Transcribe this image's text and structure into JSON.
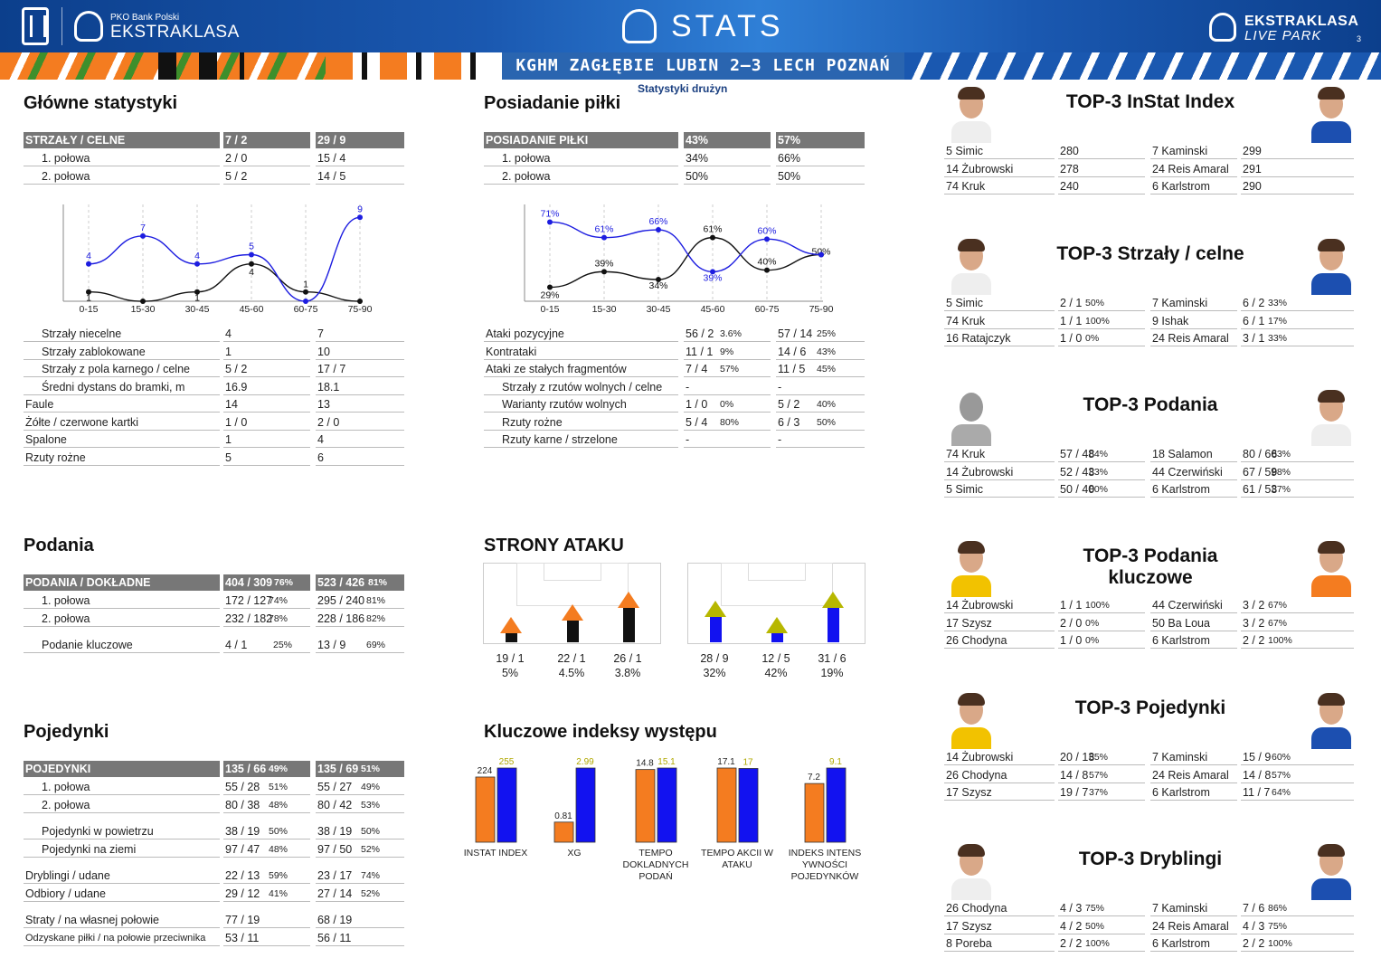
{
  "header": {
    "pko_small": "PKO Bank Polski",
    "pko_big": "EKSTRAKLASA",
    "title": "STATS",
    "live1": "EKSTRAKLASA",
    "live2": "LIVE PARK",
    "page": "3"
  },
  "banner_title": "KGHM ZAGŁĘBIE LUBIN 2–3 LECH POZNAŃ",
  "subtitle": "Statystyki drużyn",
  "colors": {
    "home": "#111111",
    "away": "#1d1de0",
    "orange": "#f47c20",
    "blue": "#1212f0",
    "olive": "#b7b700",
    "header_blue": "#1a58b0"
  },
  "main_stats": {
    "title": "Główne statystyki",
    "header": [
      "STRZAŁY / CELNE",
      "7 / 2",
      "29 / 9"
    ],
    "rows": [
      [
        "1. połowa",
        "2 / 0",
        "15 / 4"
      ],
      [
        "2. połowa",
        "5 / 2",
        "14 / 5"
      ]
    ],
    "rows2": [
      [
        "Strzały niecelne",
        "4",
        "7"
      ],
      [
        "Strzały zablokowane",
        "1",
        "10"
      ],
      [
        "Strzały z pola karnego / celne",
        "5 / 2",
        "17 / 7"
      ],
      [
        "Średni dystans do bramki, m",
        "16.9",
        "18.1"
      ],
      [
        "Faule",
        "14",
        "13"
      ],
      [
        "Żółte / czerwone kartki",
        "1 / 0",
        "2 / 0"
      ],
      [
        "Spalone",
        "1",
        "4"
      ],
      [
        "Rzuty rożne",
        "5",
        "6"
      ]
    ]
  },
  "possession": {
    "title": "Posiadanie piłki",
    "header": [
      "POSIADANIE PIŁKI",
      "43%",
      "57%"
    ],
    "rows": [
      [
        "1. połowa",
        "34%",
        "66%"
      ],
      [
        "2. połowa",
        "50%",
        "50%"
      ]
    ],
    "rows2": [
      [
        "Ataki pozycyjne",
        "56 / 2",
        "3.6%",
        "57 / 14",
        "25%"
      ],
      [
        "Kontrataki",
        "11 / 1",
        "9%",
        "14 / 6",
        "43%"
      ],
      [
        "Ataki ze stałych fragmentów",
        "7 / 4",
        "57%",
        "11 / 5",
        "45%"
      ],
      [
        "Strzały z rzutów wolnych / celne",
        "-",
        "",
        "-",
        ""
      ],
      [
        "Warianty rzutów wolnych",
        "1 / 0",
        "0%",
        "5 / 2",
        "40%"
      ],
      [
        "Rzuty rożne",
        "5 / 4",
        "80%",
        "6 / 3",
        "50%"
      ],
      [
        "Rzuty karne / strzelone",
        "-",
        "",
        "-",
        ""
      ]
    ]
  },
  "chart_data": [
    {
      "type": "line",
      "categories": [
        "0-15",
        "15-30",
        "30-45",
        "45-60",
        "60-75",
        "75-90"
      ],
      "series": [
        {
          "values": [
            1,
            0,
            1,
            4,
            1,
            0
          ],
          "labels": [
            "1",
            "",
            "1",
            "4",
            "1",
            ""
          ]
        },
        {
          "values": [
            4,
            7,
            4,
            5,
            0,
            9
          ],
          "labels": [
            "4",
            "7",
            "4",
            "5",
            "",
            "9"
          ]
        }
      ],
      "ylim": [
        0,
        10
      ]
    },
    {
      "type": "line",
      "categories": [
        "0-15",
        "15-30",
        "30-45",
        "45-60",
        "60-75",
        "75-90"
      ],
      "series": [
        {
          "values": [
            29,
            39,
            34,
            61,
            40,
            50
          ],
          "labels": [
            "29%",
            "39%",
            "34%",
            "61%",
            "40%",
            "50%"
          ]
        },
        {
          "values": [
            71,
            61,
            66,
            39,
            60,
            50
          ],
          "labels": [
            "71%",
            "61%",
            "66%",
            "39%",
            "60%",
            ""
          ]
        }
      ],
      "ylim": [
        20,
        80
      ]
    },
    {
      "type": "bar",
      "categories": [
        "INSTAT INDEX",
        "XG",
        "TEMPO DOKLADNYCH PODAŃ",
        "TEMPO AKCII W ATAKU",
        "INDEKS INTENSYWNOŚCI POJEDYNKÓW"
      ],
      "series": [
        {
          "values": [
            224,
            0.81,
            14.8,
            17.1,
            7.2
          ],
          "labels": [
            "224",
            "0.81",
            "14.8",
            "17.1",
            "7.2"
          ]
        },
        {
          "values": [
            255,
            2.99,
            15.1,
            17,
            9.1
          ],
          "labels": [
            "255",
            "2.99",
            "15.1",
            "17",
            "9.1"
          ]
        }
      ]
    }
  ],
  "passes": {
    "title": "Podania",
    "header": [
      "PODANIA / DOKŁADNE",
      "404 / 309",
      "76%",
      "523 / 426",
      "81%"
    ],
    "rows": [
      [
        "1. połowa",
        "172 / 127",
        "74%",
        "295 / 240",
        "81%"
      ],
      [
        "2. połowa",
        "232 / 182",
        "78%",
        "228 / 186",
        "82%"
      ],
      [
        "Podanie kluczowe",
        "4 / 1",
        "25%",
        "13 / 9",
        "69%"
      ]
    ]
  },
  "duels": {
    "title": "Pojedynki",
    "header": [
      "POJEDYNKI",
      "135 / 66",
      "49%",
      "135 / 69",
      "51%"
    ],
    "rows": [
      [
        "1. połowa",
        "55 / 28",
        "51%",
        "55 / 27",
        "49%"
      ],
      [
        "2. połowa",
        "80 / 38",
        "48%",
        "80 / 42",
        "53%"
      ],
      [
        "Pojedynki w powietrzu",
        "38 / 19",
        "50%",
        "38 / 19",
        "50%"
      ],
      [
        "Pojedynki na ziemi",
        "97 / 47",
        "48%",
        "97 / 50",
        "52%"
      ],
      [
        "Dryblingi / udane",
        "22 / 13",
        "59%",
        "23 / 17",
        "74%"
      ],
      [
        "Odbiory / udane",
        "29 / 12",
        "41%",
        "27 / 14",
        "52%"
      ],
      [
        "Straty / na własnej połowie",
        "77 / 19",
        "",
        "68 / 19",
        ""
      ],
      [
        "Odzyskane piłki / na połowie przeciwnika",
        "53 / 11",
        "",
        "56 / 11",
        ""
      ]
    ]
  },
  "attack": {
    "title": "STRONY ATAKU",
    "home": [
      {
        "v": "19 / 1",
        "p": "5%",
        "h": 10
      },
      {
        "v": "22 / 1",
        "p": "4.5%",
        "h": 24
      },
      {
        "v": "26 / 1",
        "p": "3.8%",
        "h": 38
      }
    ],
    "away": [
      {
        "v": "28 / 9",
        "p": "32%",
        "h": 28
      },
      {
        "v": "12 / 5",
        "p": "42%",
        "h": 10
      },
      {
        "v": "31 / 6",
        "p": "19%",
        "h": 38
      }
    ]
  },
  "kpi": {
    "title": "Kluczowe indeksy występu",
    "labels": [
      "INSTAT INDEX",
      "XG",
      "TEMPO\nDOKLADNYCH\nPODAŃ",
      "TEMPO AKCII W\nATAKU",
      "INDEKS INTENS\nYWNOŚCI\nPOJEDYNKÓW"
    ]
  },
  "tops": [
    {
      "title": "TOP-3 InStat Index",
      "rows": [
        [
          "5  Simic",
          "280",
          "",
          "7  Kaminski",
          "299",
          ""
        ],
        [
          "14 Żubrowski",
          "278",
          "",
          "24 Reis Amaral",
          "291",
          ""
        ],
        [
          "74 Kruk",
          "240",
          "",
          "6  Karlstrom",
          "290",
          ""
        ]
      ]
    },
    {
      "title": "TOP-3 Strzały / celne",
      "rows": [
        [
          "5  Simic",
          "2 / 1",
          "50%",
          "7  Kaminski",
          "6 / 2",
          "33%"
        ],
        [
          "74 Kruk",
          "1 / 1",
          "100%",
          "9  Ishak",
          "6 / 1",
          "17%"
        ],
        [
          "16 Ratajczyk",
          "1 / 0",
          "0%",
          "24 Reis Amaral",
          "3 / 1",
          "33%"
        ]
      ]
    },
    {
      "title": "TOP-3 Podania",
      "rows": [
        [
          "74 Kruk",
          "57 / 48",
          "84%",
          "18 Salamon",
          "80 / 66",
          "83%"
        ],
        [
          "14 Żubrowski",
          "52 / 43",
          "83%",
          "44 Czerwiński",
          "67 / 59",
          "88%"
        ],
        [
          "5  Simic",
          "50 / 40",
          "80%",
          "6  Karlstrom",
          "61 / 53",
          "87%"
        ]
      ]
    },
    {
      "title": "TOP-3 Podania kluczowe",
      "rows": [
        [
          "14 Żubrowski",
          "1 / 1",
          "100%",
          "44 Czerwiński",
          "3 / 2",
          "67%"
        ],
        [
          "17 Szysz",
          "2 / 0",
          "0%",
          "50 Ba Loua",
          "3 / 2",
          "67%"
        ],
        [
          "26 Chodyna",
          "1 / 0",
          "0%",
          "6  Karlstrom",
          "2 / 2",
          "100%"
        ]
      ]
    },
    {
      "title": "TOP-3 Pojedynki",
      "rows": [
        [
          "14 Żubrowski",
          "20 / 13",
          "65%",
          "7  Kaminski",
          "15 / 9",
          "60%"
        ],
        [
          "26 Chodyna",
          "14 / 8",
          "57%",
          "24 Reis Amaral",
          "14 / 8",
          "57%"
        ],
        [
          "17 Szysz",
          "19 / 7",
          "37%",
          "6  Karlstrom",
          "11 / 7",
          "64%"
        ]
      ]
    },
    {
      "title": "TOP-3 Dryblingi",
      "rows": [
        [
          "26 Chodyna",
          "4 / 3",
          "75%",
          "7  Kaminski",
          "7 / 6",
          "86%"
        ],
        [
          "17 Szysz",
          "4 / 2",
          "50%",
          "24 Reis Amaral",
          "4 / 3",
          "75%"
        ],
        [
          "8  Poreba",
          "2 / 2",
          "100%",
          "6  Karlstrom",
          "2 / 2",
          "100%"
        ]
      ]
    }
  ]
}
